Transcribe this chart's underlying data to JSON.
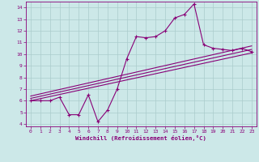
{
  "xlabel": "Windchill (Refroidissement éolien,°C)",
  "background_color": "#cce8e8",
  "grid_color": "#aacccc",
  "line_color": "#880077",
  "x_range": [
    -0.5,
    23.5
  ],
  "y_range": [
    3.8,
    14.5
  ],
  "x_ticks": [
    0,
    1,
    2,
    3,
    4,
    5,
    6,
    7,
    8,
    9,
    10,
    11,
    12,
    13,
    14,
    15,
    16,
    17,
    18,
    19,
    20,
    21,
    22,
    23
  ],
  "y_ticks": [
    4,
    5,
    6,
    7,
    8,
    9,
    10,
    11,
    12,
    13,
    14
  ],
  "line1_x": [
    0,
    1,
    2,
    3,
    4,
    5,
    6,
    7,
    8,
    9,
    10,
    11,
    12,
    13,
    14,
    15,
    16,
    17,
    18,
    19,
    20,
    21,
    22,
    23
  ],
  "line1_y": [
    6.0,
    6.0,
    6.0,
    6.3,
    4.8,
    4.8,
    6.5,
    4.2,
    5.2,
    7.0,
    9.6,
    11.5,
    11.4,
    11.5,
    12.0,
    13.1,
    13.4,
    14.3,
    10.8,
    10.5,
    10.4,
    10.3,
    10.5,
    10.2
  ],
  "line2_x": [
    0,
    23
  ],
  "line2_y": [
    6.0,
    10.1
  ],
  "line3_x": [
    0,
    23
  ],
  "line3_y": [
    6.2,
    10.4
  ],
  "line4_x": [
    0,
    23
  ],
  "line4_y": [
    6.4,
    10.7
  ]
}
